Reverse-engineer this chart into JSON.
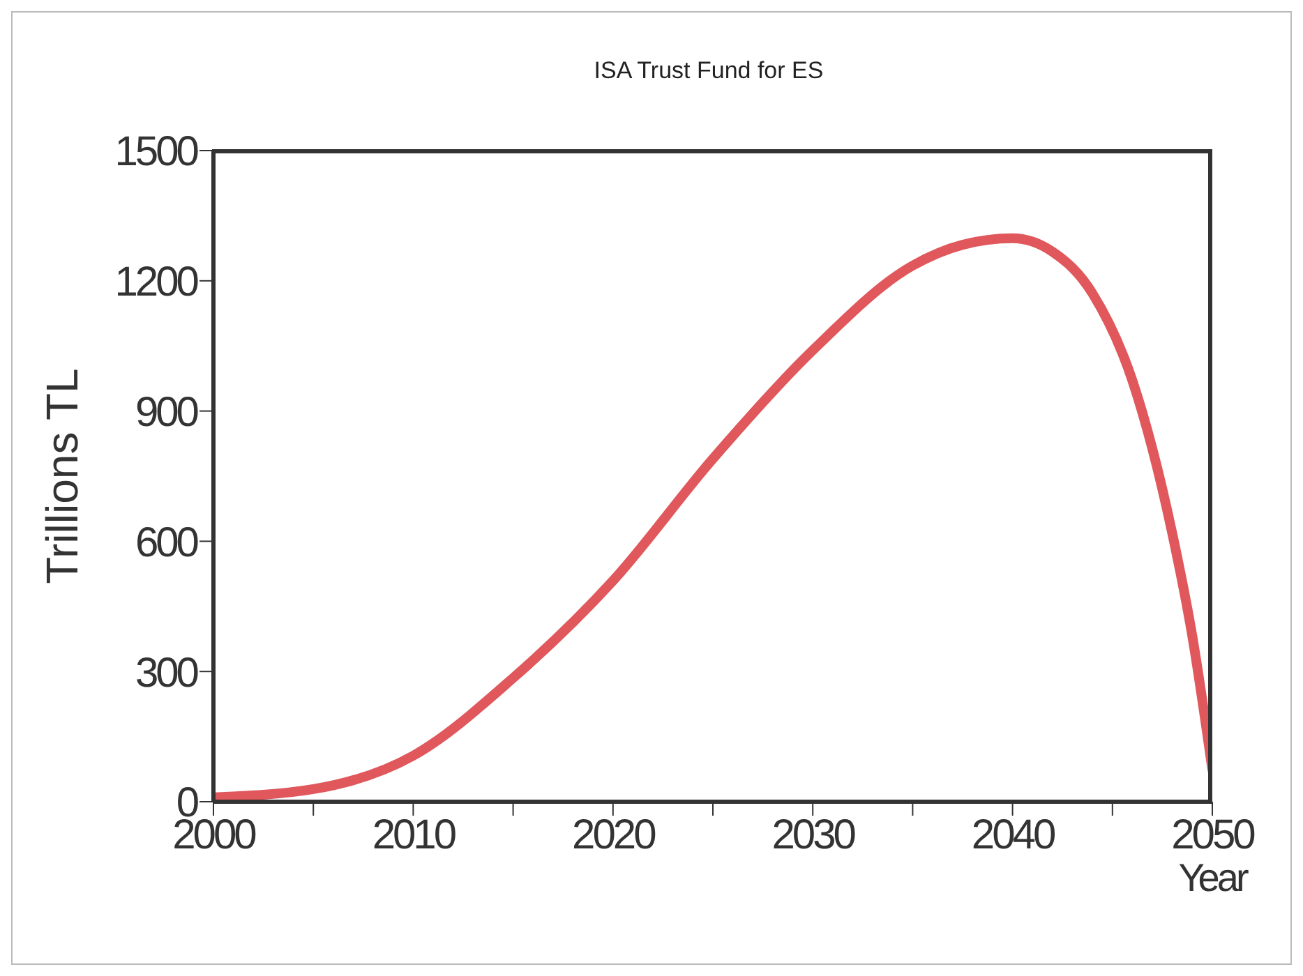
{
  "chart_data": {
    "type": "line",
    "title": "ISA Trust Fund for ES",
    "xlabel": "Year",
    "ylabel": "Trillions TL",
    "x": [
      2000,
      2005,
      2010,
      2015,
      2020,
      2025,
      2030,
      2035,
      2037.5,
      2040,
      2042,
      2044,
      2046,
      2048,
      2049,
      2050
    ],
    "series": [
      {
        "color": "#e0575c",
        "values": [
          10,
          29,
          106,
          285,
          509,
          790,
          1040,
          1235,
          1283,
          1298,
          1267,
          1171,
          970,
          617,
          381,
          74
        ]
      }
    ],
    "xlim": [
      2000,
      2050
    ],
    "xticks": [
      2000,
      {
        "value": 2005,
        "label": null
      },
      2010,
      {
        "value": 2015,
        "label": null
      },
      2020,
      {
        "value": 2025,
        "label": null
      },
      2030,
      {
        "value": 2035,
        "label": null
      },
      2040,
      {
        "value": 2045,
        "label": null
      },
      2050
    ],
    "ylim": [
      0,
      1500
    ],
    "yticks": [
      0,
      300,
      600,
      900,
      1200,
      1500
    ],
    "marker": "none",
    "line_style": "solid"
  }
}
